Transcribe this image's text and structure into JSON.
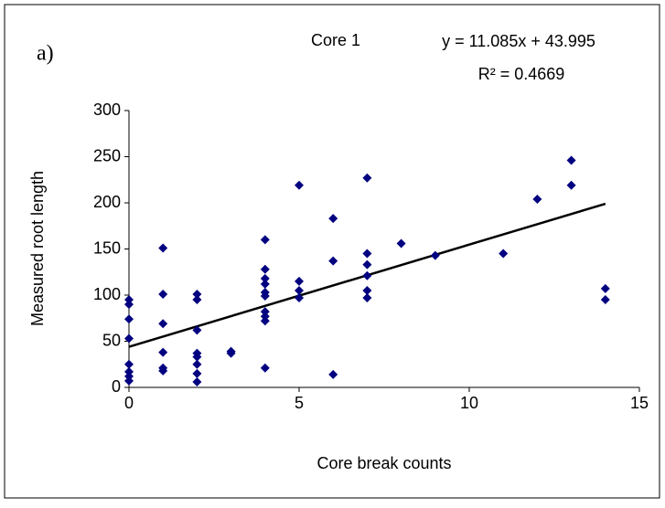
{
  "chart_data": {
    "type": "scatter",
    "panel_label": "a)",
    "title": "Core 1",
    "x_label": "Core break counts",
    "y_label": "Measured root length",
    "series": [
      {
        "name": null,
        "color": "#000080",
        "x": [
          0,
          0,
          0,
          0,
          0,
          0,
          0,
          0,
          1,
          1,
          1,
          1,
          1,
          1,
          2,
          2,
          2,
          2,
          2,
          2,
          2,
          2,
          3,
          3,
          4,
          4,
          4,
          4,
          4,
          4,
          4,
          4,
          4,
          4,
          5,
          5,
          5,
          5,
          6,
          6,
          6,
          7,
          7,
          7,
          7,
          7,
          7,
          8,
          9,
          11,
          12,
          13,
          13,
          14,
          14
        ],
        "values": [
          95,
          90,
          74,
          53,
          25,
          17,
          12,
          7,
          151,
          101,
          69,
          38,
          21,
          18,
          101,
          95,
          62,
          37,
          33,
          25,
          15,
          6,
          39,
          37,
          160,
          128,
          118,
          112,
          103,
          99,
          82,
          77,
          72,
          21,
          219,
          115,
          105,
          97,
          183,
          137,
          14,
          227,
          145,
          133,
          121,
          105,
          97,
          156,
          143,
          145,
          204,
          246,
          219,
          107,
          95
        ]
      }
    ],
    "trendline": {
      "color": "#000000",
      "x": [
        0,
        14
      ],
      "values": [
        44,
        199
      ],
      "equation": "y = 11.085x + 43.995",
      "r2": "R² = 0.4669"
    },
    "xlim": [
      0,
      15
    ],
    "xticks": [
      0,
      5,
      10,
      15
    ],
    "ylim": [
      0,
      300
    ],
    "yticks": [
      0,
      50,
      100,
      150,
      200,
      250,
      300
    ]
  }
}
